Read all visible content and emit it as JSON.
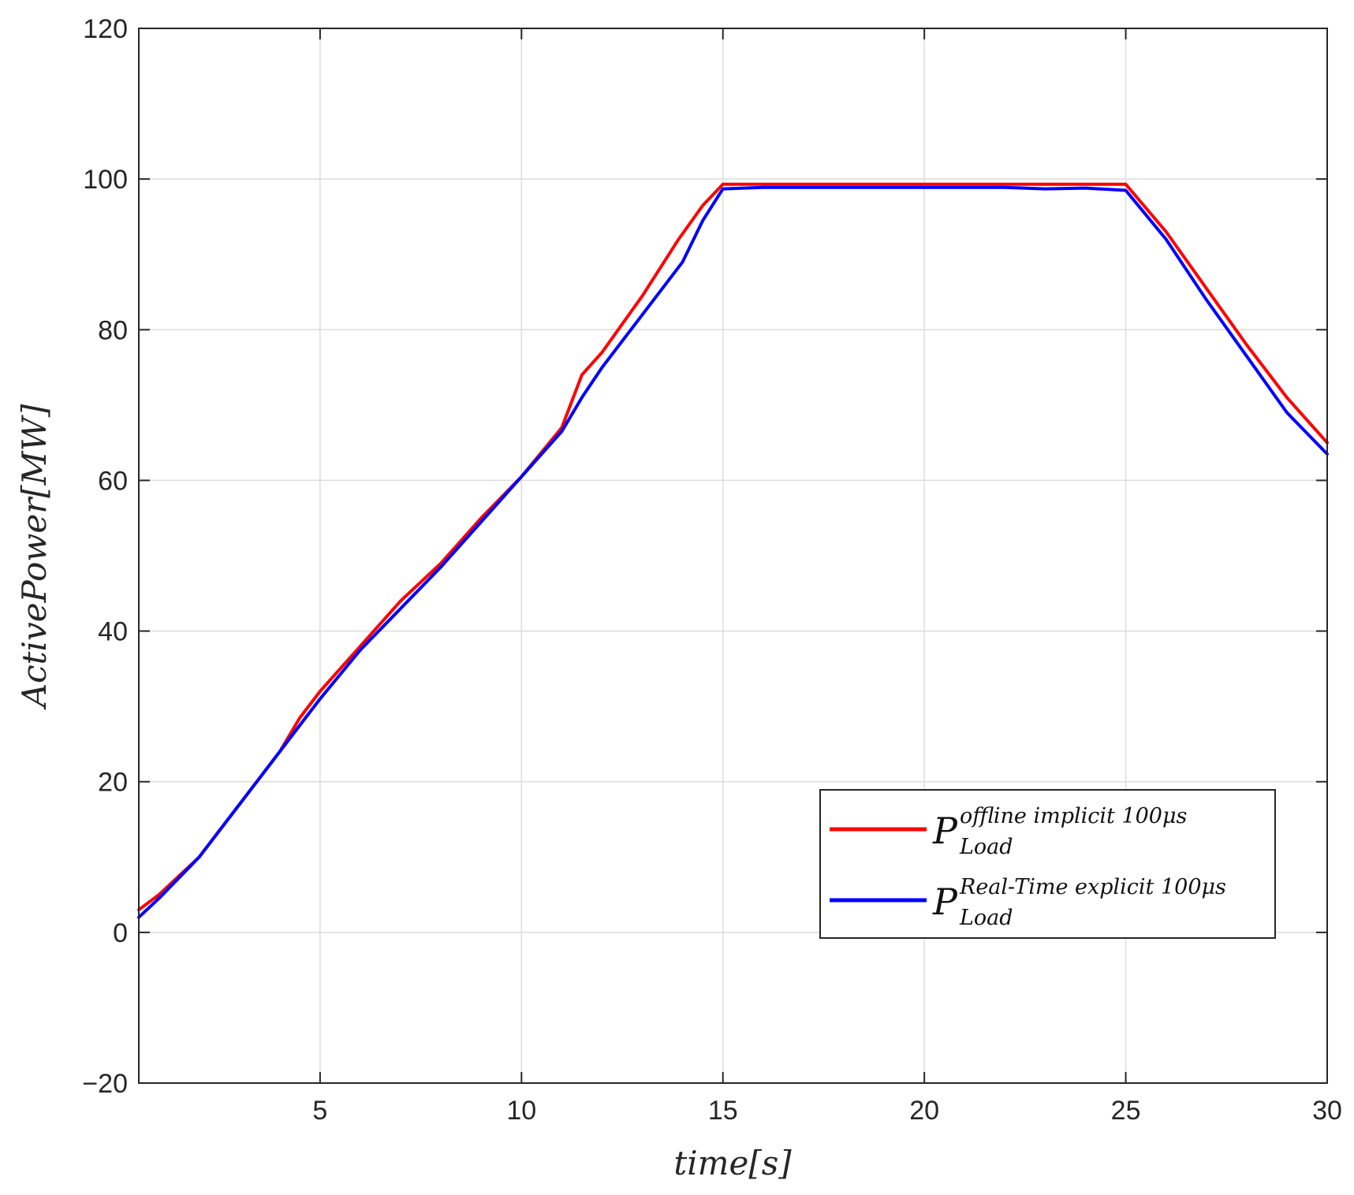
{
  "chart_data": {
    "type": "line",
    "title": "",
    "xlabel": "time[s]",
    "ylabel": "ActivePower[MW]",
    "xlim": [
      0.5,
      30
    ],
    "ylim": [
      -20,
      120
    ],
    "xticks": [
      5,
      10,
      15,
      20,
      25,
      30
    ],
    "yticks": [
      -20,
      0,
      20,
      40,
      60,
      80,
      100,
      120
    ],
    "xtick_labels": [
      "5",
      "10",
      "15",
      "20",
      "25",
      "30"
    ],
    "ytick_labels": [
      "−20",
      "0",
      "20",
      "40",
      "60",
      "80",
      "100",
      "120"
    ],
    "grid": true,
    "legend_position": "lower-right",
    "series": [
      {
        "name": "P_Load offline implicit 100μs",
        "legend": {
          "main": "P",
          "sup": "offline implicit 100μs",
          "sub": "Load"
        },
        "color": "#ff0000",
        "x": [
          0.5,
          1,
          2,
          3,
          4,
          4.5,
          5,
          6,
          7,
          8,
          9,
          10,
          11,
          11.5,
          12,
          13,
          13.9,
          14.5,
          15,
          16,
          17,
          18,
          19,
          20,
          21,
          22,
          23,
          24,
          25,
          26,
          27,
          28,
          29,
          30
        ],
        "y": [
          3,
          5,
          10,
          17,
          24,
          28.5,
          32,
          38,
          44,
          49,
          55,
          60.5,
          67,
          74,
          77,
          84.5,
          92,
          96.5,
          99.3,
          99.3,
          99.3,
          99.3,
          99.3,
          99.3,
          99.3,
          99.3,
          99.3,
          99.3,
          99.3,
          93,
          85.5,
          78,
          71,
          65
        ]
      },
      {
        "name": "P_Load Real-Time explicit 100μs",
        "legend": {
          "main": "P",
          "sup": "Real-Time explicit 100μs",
          "sub": "Load"
        },
        "color": "#0000ff",
        "x": [
          0.5,
          1,
          2,
          3,
          4,
          4.5,
          5,
          6,
          7,
          8,
          9,
          10,
          11,
          11.5,
          12,
          13,
          14,
          14.5,
          15,
          16,
          17,
          18,
          19,
          20,
          21,
          22,
          23,
          24,
          25,
          26,
          27,
          28,
          29,
          30
        ],
        "y": [
          2,
          4.5,
          10,
          17,
          24,
          27.5,
          31,
          37.5,
          43,
          48.5,
          54.5,
          60.5,
          66.5,
          71,
          75,
          82,
          89,
          94.5,
          98.7,
          98.9,
          98.9,
          98.9,
          98.9,
          98.9,
          98.9,
          98.9,
          98.7,
          98.8,
          98.5,
          92,
          84,
          76.5,
          69,
          63.5
        ]
      }
    ]
  }
}
